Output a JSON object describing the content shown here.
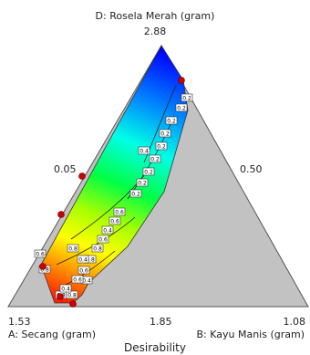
{
  "chart_data": {
    "type": "heatmap",
    "subtype": "ternary-contour",
    "title": "",
    "footer_label": "Desirability",
    "axes": {
      "top": {
        "letter": "D",
        "label": "D: Rosela Merah (gram)",
        "apex_value": "2.88",
        "side_value": "0.05"
      },
      "left": {
        "letter": "A",
        "label": "A: Secang (gram)",
        "apex_value": "1.53"
      },
      "right": {
        "letter": "B",
        "label": "B: Kayu Manis (gram)",
        "apex_value": "1.08",
        "side_value": "0.50"
      },
      "base_mid_value": "1.85"
    },
    "colormap": {
      "low": "#0000ff",
      "mid": "#00ff00",
      "high": "#ff0000",
      "levels": [
        "#0000ff",
        "#00aaff",
        "#00ffe0",
        "#00ff55",
        "#aaff00",
        "#ffff00",
        "#ff8800",
        "#ff3300"
      ]
    },
    "infeasible_color": "#c0c0c0",
    "contour_levels": [
      {
        "value": 0.2,
        "label": "0.2"
      },
      {
        "value": 0.4,
        "label": "0.4"
      },
      {
        "value": 0.6,
        "label": "0.6"
      },
      {
        "value": 0.8,
        "label": "0.8"
      }
    ],
    "contour_label_text": [
      "0.2",
      "0.2",
      "0.2",
      "0.2",
      "0.2",
      "0.2",
      "0.2",
      "0.2",
      "0.2",
      "0.4",
      "0.6",
      "0.6",
      "0.4",
      "0.6",
      "0.8",
      "0.8",
      "0.8",
      "0.4",
      "0.6",
      "0.8",
      "0.6",
      "0.4",
      "0.8",
      "0.8",
      "0.6",
      "0.4"
    ],
    "design_points_count": 6,
    "design_points_color": "#cc0000"
  }
}
